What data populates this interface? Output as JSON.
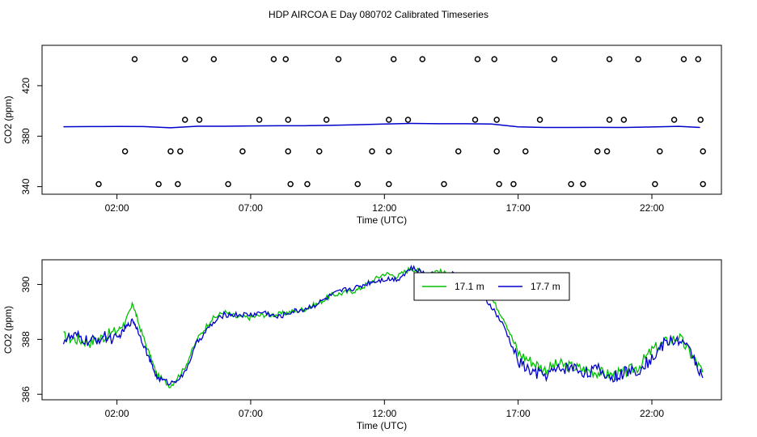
{
  "title": "HDP AIRCOA E  Day 080702  Calibrated Timeseries",
  "colors": {
    "green": "#00c000",
    "blue": "#0000cc",
    "cyan": "#00a0d0"
  },
  "chart_data": [
    {
      "type": "scatter",
      "xlabel": "Time (UTC)",
      "ylabel": "CO2 (ppm)",
      "xlim": [
        -0.8,
        24.6
      ],
      "ylim": [
        334,
        452
      ],
      "x_ticks": [
        2,
        7,
        12,
        17,
        22
      ],
      "x_tick_labels": [
        "02:00",
        "07:00",
        "12:00",
        "17:00",
        "22:00"
      ],
      "y_ticks": [
        340,
        380,
        420
      ],
      "y_tick_labels": [
        "340",
        "380",
        "420"
      ],
      "cal_points": [
        [
          0.8,
          342
        ],
        [
          1.9,
          368
        ],
        [
          2.3,
          441
        ],
        [
          3.3,
          342
        ],
        [
          3.8,
          368
        ],
        [
          4.1,
          342
        ],
        [
          4.2,
          368
        ],
        [
          4.4,
          393
        ],
        [
          4.4,
          441
        ],
        [
          5,
          393
        ],
        [
          5.6,
          441
        ],
        [
          6.2,
          342
        ],
        [
          6.8,
          368
        ],
        [
          7.5,
          393
        ],
        [
          8.1,
          441
        ],
        [
          8.6,
          441
        ],
        [
          8.7,
          393
        ],
        [
          8.7,
          368
        ],
        [
          8.8,
          342
        ],
        [
          9.5,
          342
        ],
        [
          10,
          368
        ],
        [
          10.3,
          393
        ],
        [
          10.8,
          441
        ],
        [
          11.6,
          342
        ],
        [
          12.2,
          368
        ],
        [
          12.9,
          368
        ],
        [
          12.9,
          342
        ],
        [
          12.9,
          393
        ],
        [
          13.1,
          441
        ],
        [
          13.7,
          393
        ],
        [
          14.3,
          441
        ],
        [
          15.2,
          342
        ],
        [
          15.8,
          368
        ],
        [
          16.5,
          393
        ],
        [
          16.6,
          441
        ],
        [
          17.3,
          441
        ],
        [
          17.4,
          393
        ],
        [
          17.4,
          368
        ],
        [
          17.5,
          342
        ],
        [
          18.1,
          342
        ],
        [
          18.6,
          368
        ],
        [
          19.2,
          393
        ],
        [
          19.8,
          441
        ],
        [
          20.5,
          342
        ],
        [
          21.0,
          342
        ],
        [
          21.6,
          368
        ],
        [
          22.0,
          368
        ],
        [
          22.1,
          441
        ],
        [
          22.1,
          393
        ],
        [
          22.7,
          393
        ],
        [
          23.3,
          441
        ],
        [
          24.0,
          342
        ],
        [
          24.2,
          368
        ],
        [
          24.8,
          393
        ],
        [
          25.2,
          441
        ],
        [
          25.8,
          441
        ],
        [
          25.9,
          393
        ],
        [
          26.0,
          368
        ],
        [
          26.0,
          342
        ]
      ],
      "cal_x_range": [
        0.0,
        26.1
      ],
      "series": [
        {
          "color": "#0000cc",
          "x": [
            0,
            1,
            2,
            3,
            4,
            5,
            6,
            7,
            8,
            9,
            10,
            11,
            12,
            13,
            14,
            15,
            16,
            17,
            18,
            19,
            20,
            21,
            22,
            23,
            23.8
          ],
          "y": [
            387.5,
            387.6,
            387.7,
            387.6,
            386.7,
            387.9,
            387.9,
            388.1,
            388.3,
            388.3,
            388.6,
            389.1,
            389.6,
            390.1,
            389.9,
            389.9,
            389.6,
            387.4,
            386.9,
            386.9,
            387.0,
            386.9,
            387.3,
            387.8,
            386.9
          ]
        }
      ]
    },
    {
      "type": "line",
      "xlabel": "Time (UTC)",
      "ylabel": "CO2 (ppm)",
      "xlim": [
        -0.8,
        24.6
      ],
      "ylim": [
        385.8,
        390.9
      ],
      "x_ticks": [
        2,
        7,
        12,
        17,
        22
      ],
      "x_tick_labels": [
        "02:00",
        "07:00",
        "12:00",
        "17:00",
        "22:00"
      ],
      "y_ticks": [
        386,
        388,
        390
      ],
      "y_tick_labels": [
        "386",
        "388",
        "390"
      ],
      "legend_position": "top-right",
      "series": [
        {
          "name": "17.1 m",
          "color": "#00c000",
          "x": [
            0,
            0.5,
            1,
            1.5,
            2,
            2.3,
            2.6,
            2.8,
            3.2,
            3.5,
            4,
            4.5,
            5,
            5.5,
            6,
            6.5,
            7,
            7.5,
            8,
            8.5,
            9,
            9.5,
            10,
            10.5,
            11,
            11.5,
            12,
            12.5,
            13,
            13.5,
            14,
            14.5,
            15,
            15.5,
            16,
            16.5,
            17,
            17.5,
            18,
            18.5,
            19,
            19.5,
            20,
            20.5,
            21,
            21.5,
            22,
            22.5,
            23,
            23.5,
            23.9
          ],
          "y": [
            388.1,
            388.0,
            387.9,
            388.1,
            388.3,
            388.6,
            389.3,
            388.6,
            387.5,
            386.7,
            386.3,
            386.9,
            388.0,
            388.7,
            389.0,
            388.8,
            388.8,
            388.9,
            388.9,
            389.0,
            389.1,
            389.3,
            389.6,
            389.7,
            389.8,
            390.1,
            390.4,
            390.3,
            390.6,
            390.4,
            390.5,
            390.3,
            390.2,
            389.9,
            389.5,
            388.7,
            387.5,
            387.2,
            386.9,
            387.1,
            387.0,
            386.9,
            386.8,
            386.7,
            386.8,
            387.0,
            387.6,
            387.9,
            388.1,
            387.4,
            386.8
          ]
        },
        {
          "name": "17.7 m",
          "color": "#0000cc",
          "x": [
            0,
            0.5,
            1,
            1.5,
            2,
            2.3,
            2.6,
            2.8,
            3.2,
            3.5,
            4,
            4.5,
            5,
            5.5,
            6,
            6.5,
            7,
            7.5,
            8,
            8.5,
            9,
            9.5,
            10,
            10.5,
            11,
            11.5,
            12,
            12.5,
            13,
            13.5,
            14,
            14.5,
            15,
            15.5,
            16,
            16.5,
            17,
            17.5,
            18,
            18.5,
            19,
            19.5,
            20,
            20.5,
            21,
            21.5,
            22,
            22.5,
            23,
            23.5,
            23.9
          ],
          "y": [
            388.0,
            388.1,
            387.9,
            388.1,
            388.0,
            388.4,
            388.7,
            388.3,
            387.3,
            386.6,
            386.4,
            386.7,
            387.9,
            388.5,
            388.9,
            388.9,
            388.9,
            389.0,
            388.8,
            389.0,
            389.1,
            389.3,
            389.6,
            389.8,
            389.9,
            390.1,
            390.2,
            390.2,
            390.6,
            390.4,
            390.3,
            390.4,
            390.1,
            389.7,
            389.2,
            388.4,
            387.2,
            386.8,
            386.7,
            386.9,
            387.0,
            386.8,
            386.9,
            386.6,
            386.8,
            386.9,
            387.3,
            387.9,
            388.0,
            387.5,
            386.6
          ]
        }
      ]
    }
  ]
}
